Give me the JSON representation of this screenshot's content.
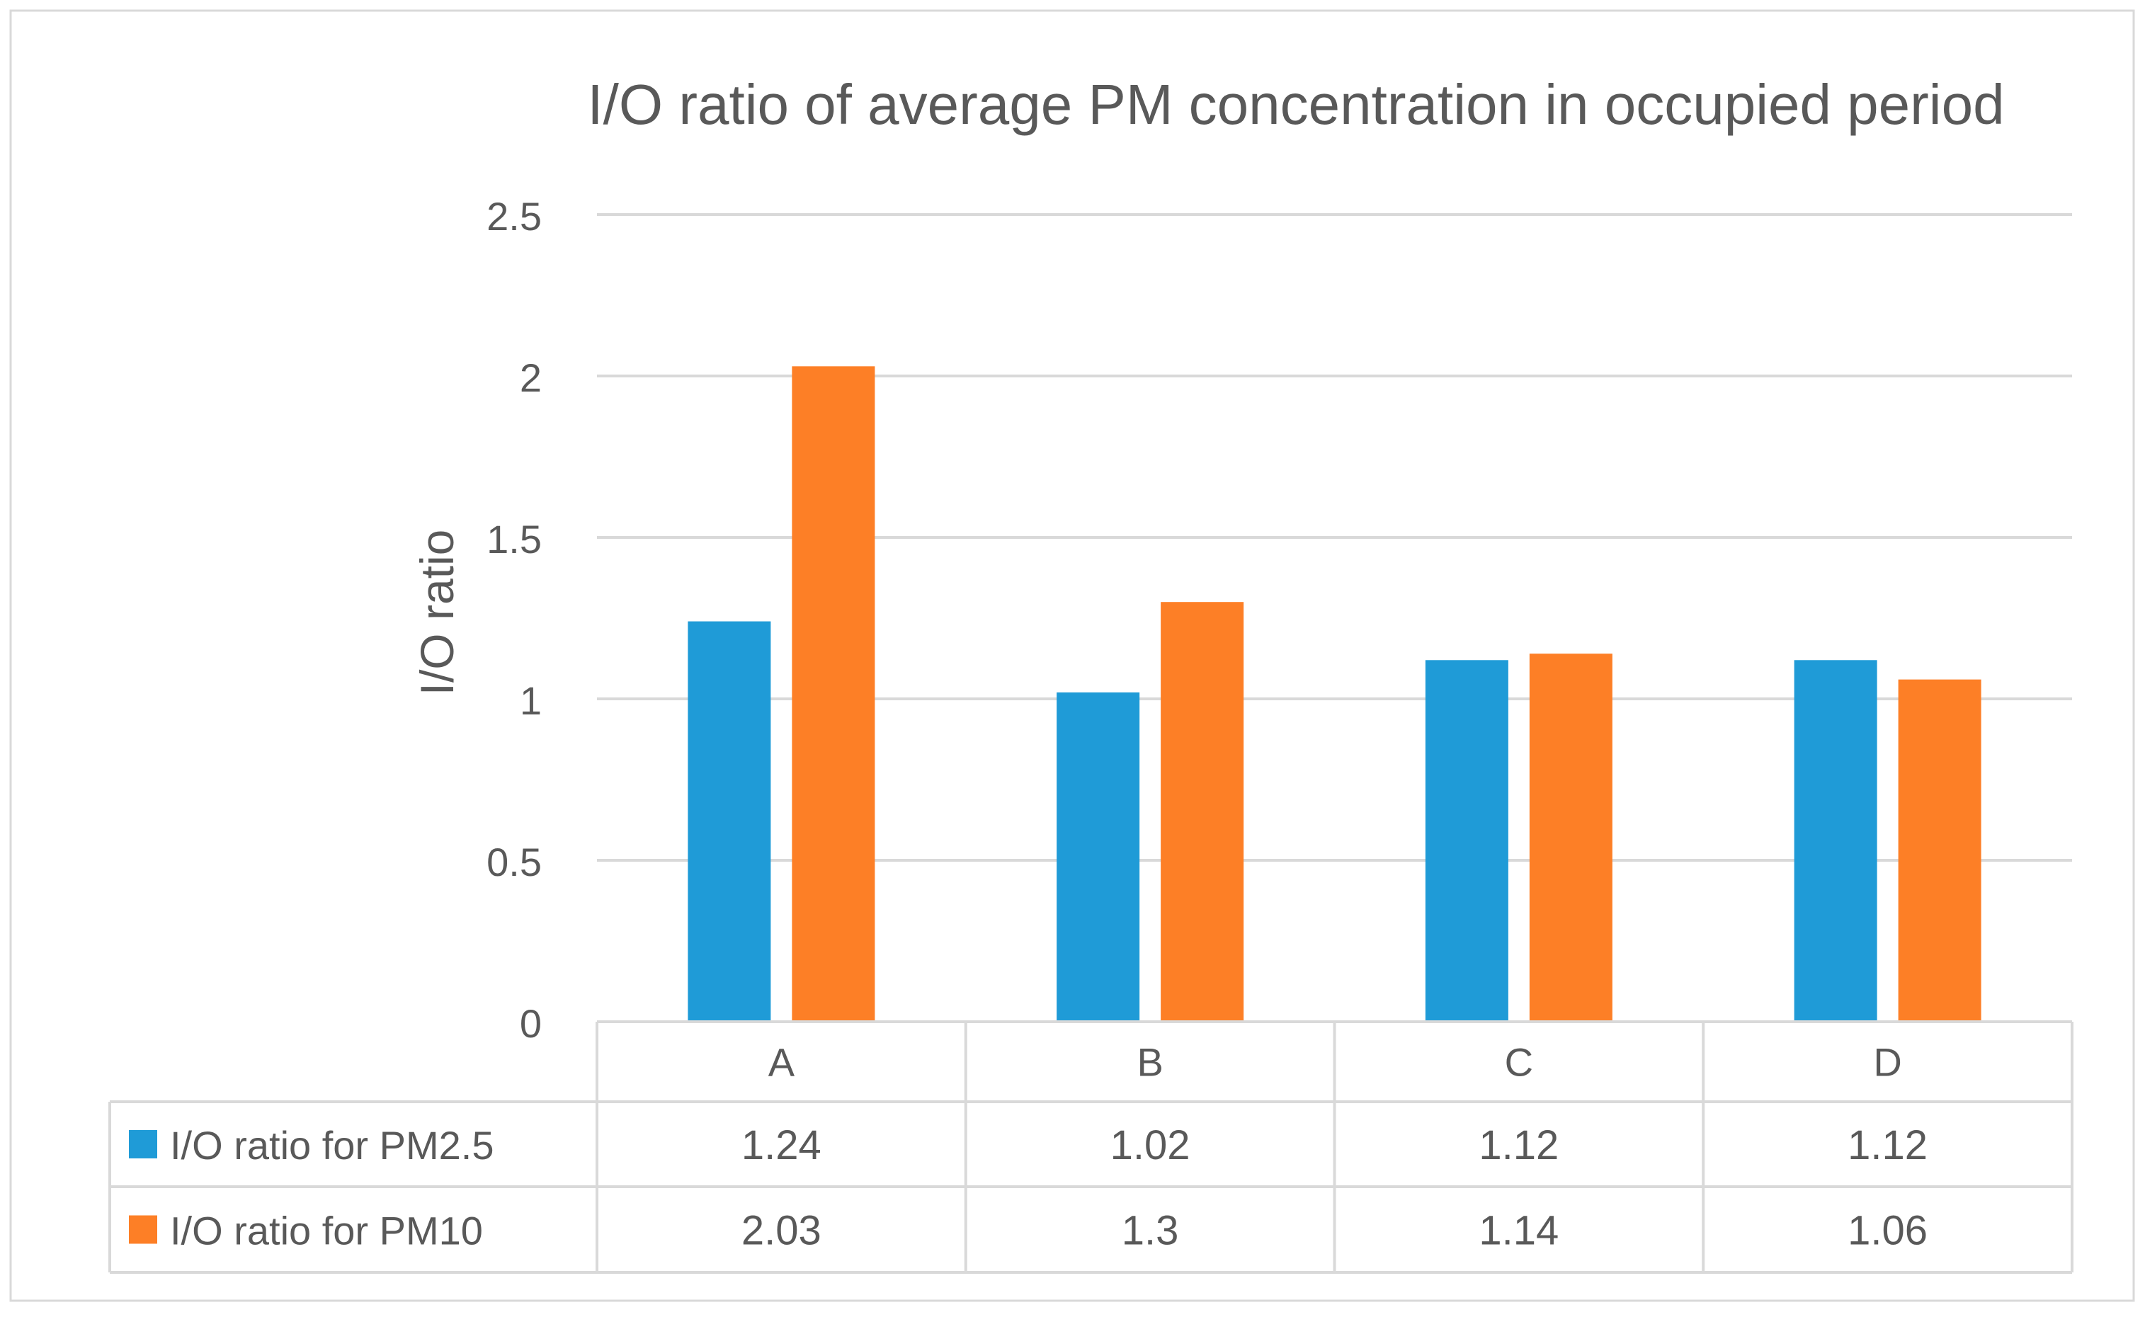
{
  "chart_data": {
    "type": "bar",
    "title": "I/O ratio of average PM concentration in occupied period",
    "xlabel": "",
    "ylabel": "I/O ratio",
    "ylim": [
      0,
      2.5
    ],
    "yticks": [
      "0",
      "0.5",
      "1",
      "1.5",
      "2",
      "2.5"
    ],
    "ytick_values": [
      0,
      0.5,
      1,
      1.5,
      2,
      2.5
    ],
    "grid": true,
    "categories": [
      "A",
      "B",
      "C",
      "D"
    ],
    "series": [
      {
        "name": "I/O ratio for PM2.5",
        "color": "#1f9bd7",
        "values": [
          1.24,
          1.02,
          1.12,
          1.12
        ],
        "labels": [
          "1.24",
          "1.02",
          "1.12",
          "1.12"
        ]
      },
      {
        "name": "I/O ratio for PM10",
        "color": "#fd7f26",
        "values": [
          2.03,
          1.3,
          1.14,
          1.06
        ],
        "labels": [
          "2.03",
          "1.3",
          "1.14",
          "1.06"
        ]
      }
    ],
    "data_table": true
  }
}
